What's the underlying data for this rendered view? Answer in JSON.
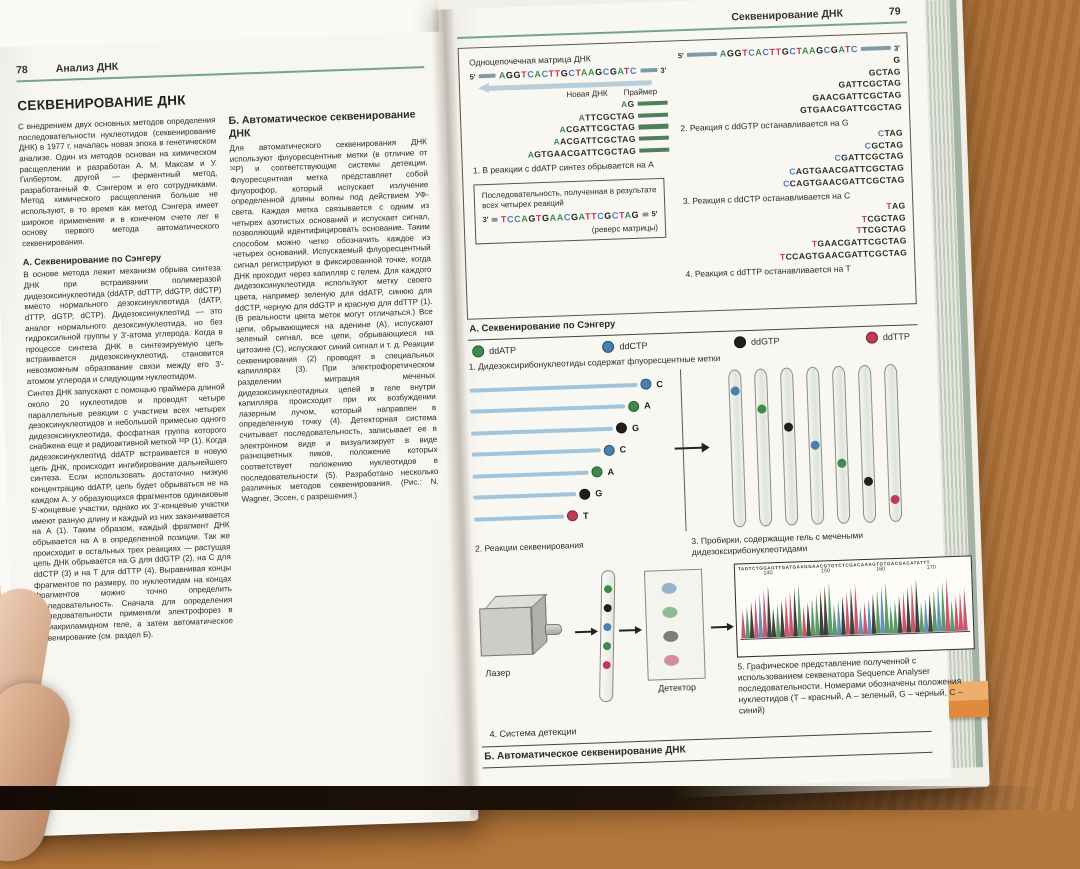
{
  "colors": {
    "A": "#3e8a4c",
    "C": "#4a7fae",
    "G": "#1f1f1c",
    "T": "#c13a55",
    "accent": "#76a291",
    "primer": "#517e5b"
  },
  "left_page": {
    "page_number": "78",
    "running_head": "Анализ ДНК",
    "title": "СЕКВЕНИРОВАНИЕ ДНК",
    "intro": "С внедрением двух основных методов определения последовательности нуклеотидов (секвенирование ДНК) в 1977 г. началась новая эпоха в генетическом анализе. Один из методов основан на химическом расщеплении и разработан А. М. Максам и У. Гилбертом, другой — ферментный метод, разработанный Ф. Сэнгером и его сотрудниками. Метод химического расщепления больше не используют, в то время как метод Сэнгера имеет широкое применение и в конечном счете лег в основу первого метода автоматического секвенирования.",
    "section_a": {
      "heading": "А. Секвенирование по Сэнгеру",
      "para1": "В основе метода лежит механизм обрыва синтеза ДНК при встраивании полимеразой дидезоксинуклеотида (ddATP, ddTTP, ddGTP, ddCTP) вместо нормального дезоксинуклеотида (dATP, dTTP, dGTP, dCTP). Дидезоксинуклеотид — это аналог нормального дезоксинуклеотида, но без гидроксильной группы у 3'-атома углерода. Когда в процессе синтеза ДНК в синтезируемую цепь встраивается дидезоксинуклеотид, становится невозможным образование связи между его 3'-атомом углерода и следующим нуклеотидом.",
      "para2": "Синтез ДНК запускают с помощью праймера длиной около 20 нуклеотидов и проводят четыре параллельные реакции с участием всех четырех дезоксинуклеотидов и небольшой примесью одного дидезоксинуклеотида, фосфатная группа которого снабжена еще и радиоактивной меткой ³²P (1). Когда дидезоксинуклеотид ddATP встраивается в новую цепь ДНК, происходит ингибирование дальнейшего синтеза. Если использовать достаточно низкую концентрацию ddATP, цепь будет обрываться не на каждом А. У образующихся фрагментов одинаковые 5'-концевые участки, однако их 3'-концевые участки имеют разную длину и каждый из них заканчивается на А (1). Таким образом, каждый фрагмент ДНК обрывается на А в определенной позиции. Так же происходит в остальных трех реакциях — растущая цепь ДНК обрывается на G для ddGTP (2), на C для ddCTP (3) и на T для ddTTP (4). Выравнивая концы фрагментов по размеру, по нуклеотидам на концах фрагментов можно точно определить последовательность. Сначала для определения последовательности применяли электрофорез в полиакриламидном геле, а затем автоматическое секвенирование (см. раздел Б)."
    },
    "section_b": {
      "heading": "Б. Автоматическое секвенирование ДНК",
      "para": "Для автоматического секвенирования ДНК используют флуоресцентные метки (в отличие от ³²P) и соответствующие системы детекции. Флуоресцентная метка представляет собой флуорофор, который испускает излучение определенной длины волны под действием УФ-света. Каждая метка связывается с одним из четырех азотистых оснований и испускает сигнал, позволяющий идентифицировать основание. Таким способом можно четко обозначить каждое из четырех оснований. Испускаемый флуоресцентный сигнал регистрируют в фиксированной точке, когда ДНК проходит через капилляр с гелем. Для каждого дидезоксинуклеотида используют метку своего цвета, например зеленую для ddATP, синюю для ddCTP, черную для ddGTP и красную для ddTTP (1). (В реальности цвета меток могут отличаться.) Все цепи, обрывающиеся на аденине (А), испускают зеленый сигнал, все цепи, обрывающиеся на цитозине (С), испускают синий сигнал и т. д. Реакции секвенирования (2) проводят в специальных капиллярах (3). При электрофоретическом разделении миграция меченых дидезоксинуклеотидных цепей в геле внутри капилляра происходит при их возбуждении лазерным лучом, который направлен в определенную точку (4). Детекторная система считывает последовательность, записывает ее в электронном виде и визуализирует в виде разноцветных пиков, положение которых соответствует положению нуклеотидов в последовательности (5). Разработано несколько различных методов секвенирования. (Рис.: N. Wagner, Эссен, с разрешения.)"
    }
  },
  "right_page": {
    "running_head": "Секвенирование ДНК",
    "page_number": "79",
    "figure_a": {
      "template_label": "Одноцепочечная матрица ДНК",
      "five_prime": "5'",
      "three_prime": "3'",
      "template_sequence": "AGGTCACTTGCTAAGCGATC",
      "new_dna_label": "Новая ДНК",
      "primer_label": "Праймер",
      "reaction1": {
        "fragments": [
          "AG",
          "ATTCGCTAG",
          "ACGATTCGCTAG",
          "AACGATTCGCTAG",
          "AGTGAACGATTCGCTAG"
        ],
        "caption": "1. В реакции с ddATP синтез обрывается на А"
      },
      "reaction2": {
        "fragments": [
          "G",
          "GCTAG",
          "GATTCGCTAG",
          "GAACGATTCGCTAG",
          "GTGAACGATTCGCTAG"
        ],
        "caption": "2. Реакция с ddGTP останавливается на G"
      },
      "reaction3": {
        "fragments": [
          "CTAG",
          "CGCTAG",
          "CGATTCGCTAG",
          "CAGTGAACGATTCGCTAG",
          "CCAGTGAACGATTCGCTAG"
        ],
        "caption": "3. Реакция с ddCTP останавливается на C"
      },
      "reaction4": {
        "fragments": [
          "TAG",
          "TCGCTAG",
          "TTCGCTAG",
          "TGAACGATTCGCTAG",
          "TCCAGTGAACGATTCGCTAG"
        ],
        "caption": "4. Реакция с ddTTP останавливается на T"
      },
      "result_box": {
        "label": "Последовательность, полученная в результате всех четырех реакций",
        "three_prime": "3'",
        "sequence": "TCCAGTGAACGATTCGCTAG",
        "five_prime": "5'",
        "note": "(реверс матрицы)"
      },
      "caption": "А. Секвенирование по Сэнгеру"
    },
    "figure_b": {
      "legend": [
        {
          "label": "ddATP",
          "nt": "A"
        },
        {
          "label": "ddCTP",
          "nt": "C"
        },
        {
          "label": "ddGTP",
          "nt": "G"
        },
        {
          "label": "ddTTP",
          "nt": "T"
        }
      ],
      "step1_caption": "1. Дидезоксирибонуклеотиды содержат флуоресцентные метки",
      "step2": {
        "lanes": [
          "C",
          "A",
          "G",
          "C",
          "A",
          "G",
          "T"
        ],
        "caption": "2. Реакции секвенирования"
      },
      "step3": {
        "tubes": [
          "C",
          "A",
          "G",
          "C",
          "A",
          "G",
          "T"
        ],
        "caption": "3. Пробирки, содержащие гель с мечеными дидезоксирибонуклеотидами"
      },
      "step4": {
        "laser_label": "Лазер",
        "detector_label": "Детектор",
        "capillary_bands": [
          "A",
          "G",
          "C",
          "A",
          "T"
        ],
        "detector_spots": [
          "C",
          "A",
          "G",
          "T"
        ],
        "caption": "4. Система детекции"
      },
      "step5": {
        "sequence": "TAGTCTGGAGTTGATGAAGGAACGTGTCTCGACAAAGTGTGACGACATATTT",
        "positions": [
          "140",
          "150",
          "160",
          "170"
        ],
        "caption": "5. Графическое представление полученной с использованием секвенатора Sequence Analyser последовательности. Номерами обозначены положения нуклеотидов (Т – красный, А – зеленый, G – черный, С – синий)"
      },
      "bottom_caption": "Б. Автоматическое секвенирование ДНК"
    }
  }
}
